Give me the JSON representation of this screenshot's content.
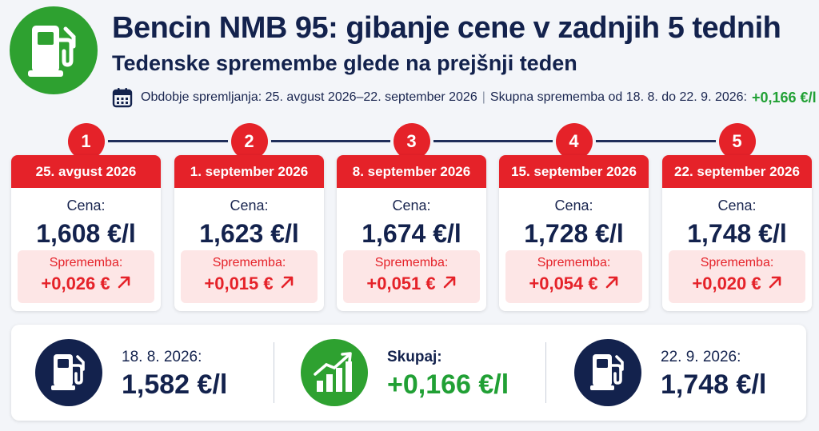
{
  "header": {
    "title": "Bencin NMB 95: gibanje cene v zadnjih 5 tednih",
    "subtitle": "Tedenske spremembe glede na prejšnji teden",
    "period_text": "Obdobje spremljanja: 25. avgust 2026–22. september 2026",
    "separator": "|",
    "total_text": "Skupna sprememba od 18. 8. do 22. 9. 2026:",
    "total_value": "+0,166 €/l",
    "logo_icon": "fuel-pump-icon",
    "calendar_icon": "calendar-icon"
  },
  "colors": {
    "accent_red": "#e52229",
    "accent_green": "#2ea130",
    "navy": "#13224d",
    "change_bg": "#fde6e6"
  },
  "weeks": [
    {
      "num": "1",
      "date": "25. avgust 2026",
      "price_label": "Cena:",
      "price": "1,608 €/l",
      "change_label": "Sprememba:",
      "change": "+0,026 €",
      "change_icon": "arrow-up-right-icon"
    },
    {
      "num": "2",
      "date": "1. september 2026",
      "price_label": "Cena:",
      "price": "1,623 €/l",
      "change_label": "Sprememba:",
      "change": "+0,015 €",
      "change_icon": "arrow-up-right-icon"
    },
    {
      "num": "3",
      "date": "8. september 2026",
      "price_label": "Cena:",
      "price": "1,674 €/l",
      "change_label": "Sprememba:",
      "change": "+0,051 €",
      "change_icon": "arrow-up-right-icon"
    },
    {
      "num": "4",
      "date": "15. september 2026",
      "price_label": "Cena:",
      "price": "1,728 €/l",
      "change_label": "Sprememba:",
      "change": "+0,054 €",
      "change_icon": "arrow-up-right-icon"
    },
    {
      "num": "5",
      "date": "22. september 2026",
      "price_label": "Cena:",
      "price": "1,748 €/l",
      "change_label": "Sprememba:",
      "change": "+0,020 €",
      "change_icon": "arrow-up-right-icon"
    }
  ],
  "summary": {
    "start": {
      "label": "18. 8. 2026:",
      "value": "1,582 €/l",
      "icon": "fuel-pump-icon"
    },
    "total": {
      "label": "Skupaj:",
      "value": "+0,166 €/l",
      "icon": "growth-chart-icon"
    },
    "end": {
      "label": "22. 9. 2026:",
      "value": "1,748 €/l",
      "icon": "fuel-pump-icon"
    }
  }
}
